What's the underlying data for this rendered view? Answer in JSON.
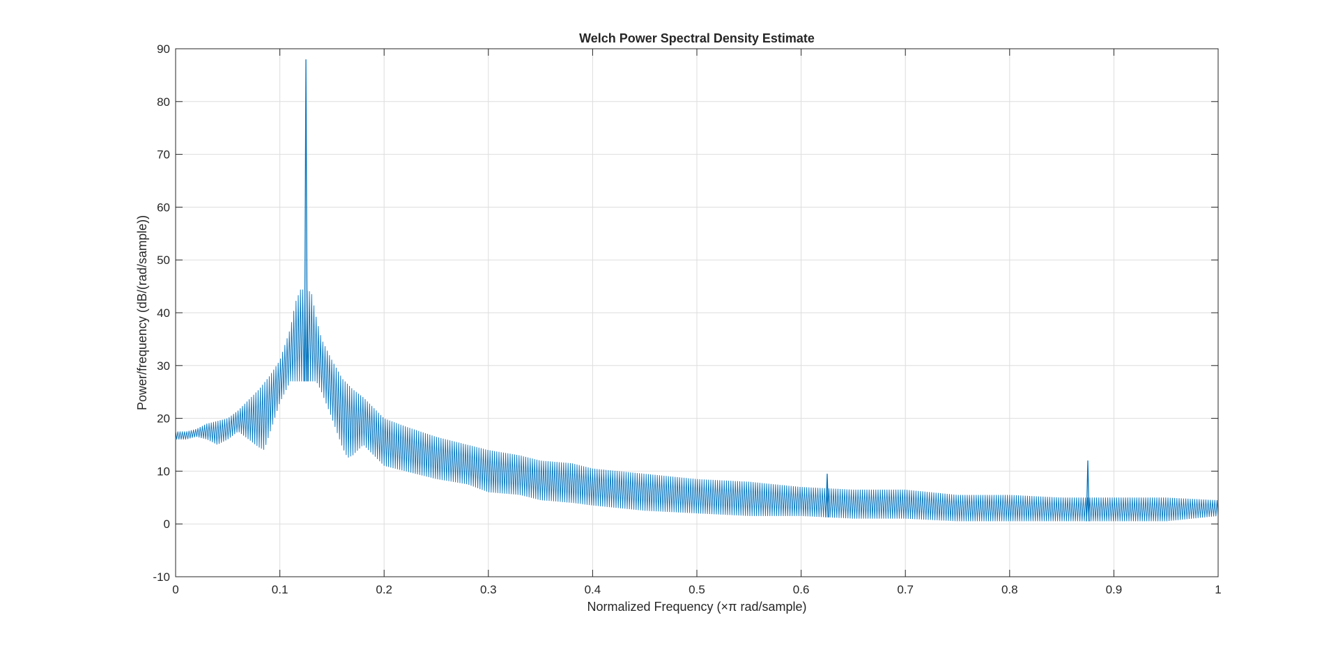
{
  "colors": {
    "series": "#0072bd",
    "grid": "#dddddd",
    "axis": "#262626",
    "background": "#ffffff"
  },
  "chart_data": {
    "type": "line",
    "title": "Welch Power Spectral Density Estimate",
    "xlabel": "Normalized Frequency  (×π rad/sample)",
    "ylabel": "Power/frequency (dB/(rad/sample))",
    "xlim": [
      0,
      1
    ],
    "ylim": [
      -10,
      90
    ],
    "x_ticks": [
      0,
      0.1,
      0.2,
      0.3,
      0.4,
      0.5,
      0.6,
      0.7,
      0.8,
      0.9,
      1
    ],
    "x_tick_labels": [
      "0",
      "0.1",
      "0.2",
      "0.3",
      "0.4",
      "0.5",
      "0.6",
      "0.7",
      "0.8",
      "0.9",
      "1"
    ],
    "y_ticks": [
      -10,
      0,
      10,
      20,
      30,
      40,
      50,
      60,
      70,
      80,
      90
    ],
    "y_tick_labels": [
      "-10",
      "0",
      "10",
      "20",
      "30",
      "40",
      "50",
      "60",
      "70",
      "80",
      "90"
    ],
    "grid": true,
    "legend": "none",
    "series": [
      {
        "style": "dense oscillating line (upper/lower envelope shown)",
        "upper_envelope": {
          "x": [
            0,
            0.01,
            0.02,
            0.03,
            0.04,
            0.05,
            0.06,
            0.07,
            0.08,
            0.09,
            0.1,
            0.11,
            0.115,
            0.12,
            0.13,
            0.135,
            0.14,
            0.15,
            0.16,
            0.17,
            0.18,
            0.2,
            0.22,
            0.25,
            0.28,
            0.3,
            0.33,
            0.35,
            0.38,
            0.4,
            0.45,
            0.5,
            0.55,
            0.6,
            0.65,
            0.7,
            0.75,
            0.8,
            0.85,
            0.9,
            0.95,
            1
          ],
          "y": [
            17.5,
            17.5,
            18,
            19,
            19.5,
            20,
            21.5,
            23.5,
            25.5,
            28,
            31,
            37,
            42,
            44.5,
            44,
            39,
            35,
            31,
            27.5,
            25.5,
            24,
            20,
            18.5,
            16.5,
            15,
            14,
            13,
            12,
            11.5,
            10.5,
            9.5,
            8.5,
            8,
            7,
            6.5,
            6.5,
            5.5,
            5.5,
            5,
            5,
            5,
            4.5
          ]
        },
        "lower_envelope": {
          "x": [
            0,
            0.01,
            0.02,
            0.03,
            0.04,
            0.05,
            0.06,
            0.07,
            0.08,
            0.085,
            0.09,
            0.1,
            0.11,
            0.115,
            0.12,
            0.13,
            0.135,
            0.14,
            0.15,
            0.16,
            0.165,
            0.17,
            0.18,
            0.2,
            0.22,
            0.25,
            0.28,
            0.3,
            0.33,
            0.35,
            0.38,
            0.4,
            0.45,
            0.5,
            0.55,
            0.6,
            0.65,
            0.7,
            0.75,
            0.8,
            0.85,
            0.9,
            0.95,
            1
          ],
          "y": [
            16,
            16,
            16.5,
            16,
            15,
            16,
            17.5,
            16,
            14.5,
            14,
            17,
            23,
            27,
            27,
            27,
            27,
            27,
            25,
            20,
            14.5,
            12.5,
            13,
            15,
            11,
            10,
            8.5,
            7.5,
            6,
            5.5,
            4.5,
            4,
            3.5,
            2.5,
            2,
            1.5,
            1.5,
            1,
            1,
            0.5,
            0.5,
            0.5,
            0.5,
            0.5,
            1.5
          ]
        },
        "peaks": [
          {
            "x": 0.125,
            "y": 88
          },
          {
            "x": 0.625,
            "y": 9.5
          },
          {
            "x": 0.875,
            "y": 12
          }
        ],
        "endpoints": [
          {
            "x": 0,
            "y": 15.5
          },
          {
            "x": 1,
            "y": -3
          }
        ]
      }
    ]
  }
}
